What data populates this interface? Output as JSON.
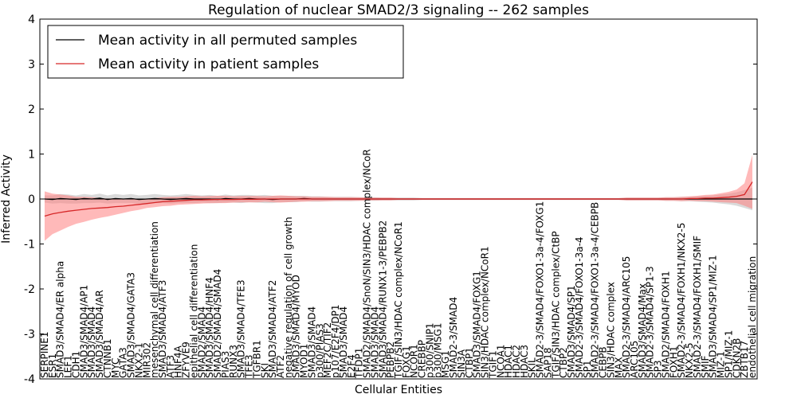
{
  "chart_data": {
    "type": "line",
    "title": "Regulation of nuclear SMAD2/3 signaling -- 262 samples",
    "xlabel": "Cellular Entities",
    "ylabel": "Inferred Activity",
    "ylim": [
      -4,
      4
    ],
    "yticks": [
      -4,
      -3,
      -2,
      -1,
      0,
      1,
      2,
      3,
      4
    ],
    "grid": false,
    "legend_position": "top-left",
    "colors": {
      "permuted_line": "#000000",
      "patient_line": "#d62728",
      "permuted_band": "#bbbbbb",
      "patient_band": "#ff8080"
    },
    "categories": [
      "SERPINE1",
      "ESR1",
      "SMAD3/SMAD4/ER alpha",
      "LEF1",
      "CDH1",
      "SMAD3/SMAD4/AP1",
      "SMAD3/SMAD4",
      "SMAD3/SMAD4/AR",
      "CTNNB1",
      "MYC",
      "GATA3",
      "SMAD3/SMAD4/GATA3",
      "NKX2-1",
      "MIR302",
      "mesenchymal cell differentiation",
      "SMAD3/SMAD4/ATF3",
      "ATF3",
      "HNF4A",
      "ZFYVE9",
      "epithelial cell differentiation",
      "SMAD2/SMAD4",
      "SMAD3/SMAD4/HNF4",
      "SMAD2/SMAD4/SMAD4",
      "PIAS3",
      "RUNX3",
      "SMAD3/SMAD4/TFE3",
      "TFE3",
      "TGFBR1",
      "SKI",
      "SMAD3/SMAD4/ATF2",
      "ATF2",
      "negative regulation of cell growth",
      "SMAD3/SMAD4/MYOD",
      "MYOD1",
      "SMAD3/SMAD4",
      "p300/PIAS3",
      "MEF2C/TIF2",
      "p107/E2F4/DP1",
      "SMAD3/SMAD4",
      "E2F4",
      "TFDP1",
      "SMAD2/SMAD4/SnoN/SIN3/HDAC complex/NCoR",
      "SMAD3/SMAD4",
      "SMAD3/SMAD4/RUNX1-3/PEBPB2",
      "PEBPB2",
      "TGIF/SIN3/HDAC complex/NCoR1",
      "FOXG1",
      "NCOR1",
      "CREBBP",
      "p300/SNIP1",
      "p300/MSG1",
      "MSG1",
      "SMAD2-3/SMAD4",
      "SIN3A",
      "CTBP1",
      "SMAD3/SMAD4/FOXG1",
      "SIN3/HDAC complex/NCoR1",
      "TGIF1",
      "NCOA1",
      "HDAC1",
      "HDAC2",
      "HDAC3",
      "SKIL",
      "SMAD2-3/SMAD4/FOXO1-3a-4/FOXG1",
      "SAP18",
      "TGIF/SIN3/HDAC complex/CtBP",
      "CTBP2",
      "SMAD3/SMAD4/SP1",
      "SMAD2-3/SMAD4/FOXO1-3a-4",
      "SP1",
      "SMAD2-3/SMAD4/FOXO1-3a-4/CEBPB",
      "CEBPB",
      "SIN3/HDAC complex",
      "MAX",
      "SMAD2-3/SMAD4/ARC105",
      "ARC105",
      "SMAD3/SMAD4/Max",
      "SMAD2-3/SMAD4/SP1-3",
      "SP3",
      "SMAD2/SMAD4/FOXH1",
      "FOXH1",
      "SMAD2-3/SMAD4/FOXH1/NKX2-5",
      "NKX2-5",
      "SMAD2-3/SMAD4/FOXH1/SMIF",
      "SMIF",
      "SMAD3/SMAD4/SP1/MIZ-1",
      "MIZ-1",
      "SP1/MIZ-1",
      "CDKN2B",
      "ZBTB17",
      "endothelial cell migration"
    ],
    "series": [
      {
        "name": "Mean activity in all permuted samples",
        "values": [
          0.0,
          -0.01,
          0.01,
          0.0,
          -0.01,
          0.01,
          0.0,
          0.02,
          -0.01,
          0.01,
          0.0,
          0.01,
          -0.01,
          0.0,
          0.01,
          0.0,
          -0.01,
          0.0,
          0.01,
          0.0,
          0.0,
          0.0,
          -0.01,
          0.01,
          0.0,
          0.0,
          0.01,
          0.0,
          0.0,
          -0.01,
          0.0,
          0.0,
          0.0,
          0.01,
          0.0,
          0.0,
          0.0,
          0.0,
          0.0,
          0.0,
          0.0,
          0.0,
          0.0,
          0.0,
          0.0,
          0.0,
          0.0,
          0.0,
          0.0,
          0.0,
          0.0,
          0.0,
          0.0,
          0.0,
          0.0,
          0.0,
          0.0,
          0.0,
          0.0,
          0.0,
          0.0,
          0.0,
          0.0,
          0.0,
          0.0,
          0.0,
          0.0,
          0.0,
          0.0,
          0.0,
          0.0,
          0.0,
          0.0,
          0.0,
          0.0,
          0.0,
          0.0,
          0.0,
          0.0,
          0.0,
          0.0,
          0.0,
          0.0,
          0.0,
          0.0,
          0.0,
          0.0,
          0.0,
          0.0,
          0.0,
          0.0
        ],
        "spread": [
          0.08,
          0.09,
          0.1,
          0.1,
          0.09,
          0.1,
          0.09,
          0.1,
          0.09,
          0.1,
          0.09,
          0.1,
          0.09,
          0.09,
          0.1,
          0.09,
          0.09,
          0.09,
          0.1,
          0.09,
          0.08,
          0.09,
          0.08,
          0.09,
          0.08,
          0.09,
          0.08,
          0.08,
          0.09,
          0.08,
          0.07,
          0.07,
          0.07,
          0.06,
          0.06,
          0.06,
          0.05,
          0.05,
          0.05,
          0.05,
          0.04,
          0.04,
          0.04,
          0.03,
          0.03,
          0.03,
          0.03,
          0.03,
          0.02,
          0.02,
          0.02,
          0.02,
          0.02,
          0.02,
          0.02,
          0.02,
          0.02,
          0.02,
          0.02,
          0.02,
          0.02,
          0.02,
          0.02,
          0.02,
          0.02,
          0.02,
          0.02,
          0.02,
          0.02,
          0.02,
          0.02,
          0.02,
          0.02,
          0.02,
          0.03,
          0.03,
          0.03,
          0.03,
          0.03,
          0.04,
          0.04,
          0.05,
          0.05,
          0.06,
          0.07,
          0.08,
          0.1,
          0.12,
          0.15,
          0.2,
          0.25
        ]
      },
      {
        "name": "Mean activity in patient samples",
        "values": [
          -0.38,
          -0.33,
          -0.3,
          -0.27,
          -0.25,
          -0.23,
          -0.21,
          -0.2,
          -0.19,
          -0.17,
          -0.16,
          -0.14,
          -0.12,
          -0.1,
          -0.08,
          -0.06,
          -0.05,
          -0.04,
          -0.03,
          -0.02,
          -0.02,
          -0.015,
          -0.01,
          -0.01,
          -0.01,
          -0.005,
          -0.005,
          -0.005,
          0.0,
          0.0,
          0.0,
          0.0,
          0.0,
          0.0,
          0.0,
          0.0,
          0.0,
          0.0,
          0.0,
          0.0,
          0.0,
          0.0,
          0.0,
          0.0,
          0.0,
          0.0,
          0.0,
          0.0,
          0.0,
          0.0,
          0.0,
          0.0,
          0.0,
          0.0,
          0.0,
          0.0,
          0.0,
          0.0,
          0.0,
          0.0,
          0.0,
          0.0,
          0.0,
          0.0,
          0.0,
          0.0,
          0.0,
          0.0,
          0.0,
          0.0,
          0.0,
          0.0,
          0.0,
          0.0,
          0.0,
          0.0,
          0.0,
          0.0,
          0.0,
          0.0,
          0.0,
          0.0,
          0.01,
          0.01,
          0.02,
          0.02,
          0.03,
          0.04,
          0.06,
          0.1,
          0.38
        ],
        "spread": [
          0.55,
          0.45,
          0.4,
          0.35,
          0.3,
          0.28,
          0.25,
          0.22,
          0.2,
          0.18,
          0.15,
          0.13,
          0.12,
          0.1,
          0.1,
          0.1,
          0.1,
          0.09,
          0.09,
          0.09,
          0.08,
          0.08,
          0.08,
          0.08,
          0.07,
          0.07,
          0.07,
          0.07,
          0.06,
          0.07,
          0.08,
          0.07,
          0.06,
          0.06,
          0.05,
          0.05,
          0.05,
          0.04,
          0.04,
          0.04,
          0.04,
          0.03,
          0.03,
          0.03,
          0.03,
          0.02,
          0.02,
          0.02,
          0.02,
          0.02,
          0.02,
          0.02,
          0.02,
          0.02,
          0.02,
          0.02,
          0.02,
          0.02,
          0.02,
          0.02,
          0.02,
          0.02,
          0.02,
          0.02,
          0.02,
          0.02,
          0.02,
          0.02,
          0.02,
          0.02,
          0.02,
          0.02,
          0.02,
          0.02,
          0.03,
          0.03,
          0.03,
          0.03,
          0.03,
          0.04,
          0.04,
          0.05,
          0.05,
          0.06,
          0.07,
          0.08,
          0.1,
          0.12,
          0.15,
          0.25,
          0.6
        ]
      }
    ]
  }
}
